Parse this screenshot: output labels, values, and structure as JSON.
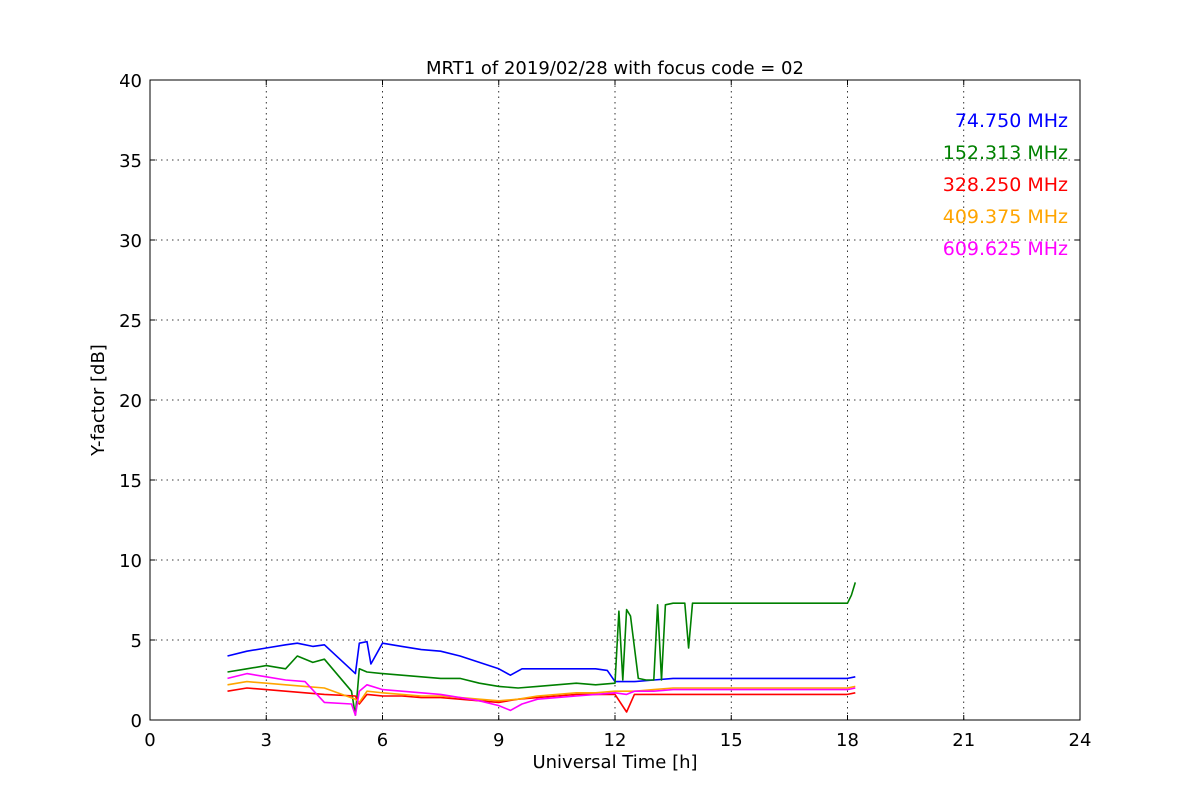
{
  "chart_data": {
    "type": "line",
    "title": "MRT1 of 2019/02/28 with focus code = 02",
    "xlabel": "Universal Time [h]",
    "ylabel": "Y-factor [dB]",
    "xlim": [
      0,
      24
    ],
    "ylim": [
      0,
      40
    ],
    "x_ticks": [
      0,
      3,
      6,
      9,
      12,
      15,
      18,
      21,
      24
    ],
    "x_tick_labels": [
      "0",
      "3",
      "6",
      "9",
      "12",
      "15",
      "18",
      "21",
      "24"
    ],
    "y_ticks": [
      0,
      5,
      10,
      15,
      20,
      25,
      30,
      35,
      40
    ],
    "y_tick_labels": [
      "0",
      "5",
      "10",
      "15",
      "20",
      "25",
      "30",
      "35",
      "40"
    ],
    "grid": true,
    "legend_position": "top-right",
    "series": [
      {
        "name": "74.750 MHz",
        "color": "#0000ff",
        "x": [
          2.0,
          2.5,
          3.0,
          3.5,
          3.8,
          4.2,
          4.5,
          5.3,
          5.4,
          5.6,
          5.7,
          6.0,
          6.5,
          7.0,
          7.5,
          8.0,
          8.5,
          9.0,
          9.3,
          9.6,
          10.0,
          10.5,
          11.0,
          11.5,
          11.8,
          12.0,
          12.5,
          13.0,
          13.5,
          14.0,
          18.0,
          18.2
        ],
        "y": [
          4.0,
          4.3,
          4.5,
          4.7,
          4.8,
          4.6,
          4.7,
          2.9,
          4.8,
          4.9,
          3.5,
          4.8,
          4.6,
          4.4,
          4.3,
          4.0,
          3.6,
          3.2,
          2.8,
          3.2,
          3.2,
          3.2,
          3.2,
          3.2,
          3.1,
          2.4,
          2.4,
          2.5,
          2.6,
          2.6,
          2.6,
          2.7
        ]
      },
      {
        "name": "152.313 MHz",
        "color": "#008000",
        "x": [
          2.0,
          2.5,
          3.0,
          3.5,
          3.8,
          4.2,
          4.5,
          5.2,
          5.3,
          5.4,
          5.6,
          6.0,
          6.5,
          7.0,
          7.5,
          8.0,
          8.5,
          9.0,
          9.5,
          10.0,
          10.5,
          11.0,
          11.5,
          12.0,
          12.1,
          12.2,
          12.3,
          12.4,
          12.6,
          12.8,
          13.0,
          13.1,
          13.2,
          13.3,
          13.5,
          13.8,
          13.9,
          14.0,
          18.0,
          18.1,
          18.2
        ],
        "y": [
          3.0,
          3.2,
          3.4,
          3.2,
          4.0,
          3.6,
          3.8,
          1.8,
          0.3,
          3.2,
          3.0,
          2.9,
          2.8,
          2.7,
          2.6,
          2.6,
          2.3,
          2.1,
          2.0,
          2.1,
          2.2,
          2.3,
          2.2,
          2.3,
          6.8,
          2.5,
          6.9,
          6.5,
          2.6,
          2.5,
          2.5,
          7.2,
          2.5,
          7.2,
          7.3,
          7.3,
          4.5,
          7.3,
          7.3,
          7.8,
          8.6
        ]
      },
      {
        "name": "328.250 MHz",
        "color": "#ff0000",
        "x": [
          2.0,
          2.5,
          3.0,
          3.5,
          4.0,
          4.5,
          5.3,
          5.4,
          5.6,
          6.0,
          6.5,
          7.0,
          7.5,
          8.0,
          8.5,
          9.0,
          9.5,
          10.0,
          10.5,
          11.0,
          11.5,
          12.0,
          12.3,
          12.5,
          13.0,
          13.5,
          14.0,
          18.0,
          18.2
        ],
        "y": [
          1.8,
          2.0,
          1.9,
          1.8,
          1.7,
          1.6,
          1.5,
          1.0,
          1.6,
          1.5,
          1.5,
          1.4,
          1.4,
          1.3,
          1.2,
          1.1,
          1.3,
          1.4,
          1.5,
          1.6,
          1.6,
          1.6,
          0.5,
          1.6,
          1.6,
          1.6,
          1.6,
          1.6,
          1.7
        ]
      },
      {
        "name": "409.375 MHz",
        "color": "#ffa500",
        "x": [
          2.0,
          2.5,
          3.0,
          3.5,
          4.0,
          4.5,
          5.3,
          5.4,
          5.6,
          6.0,
          6.5,
          7.0,
          7.5,
          8.0,
          8.5,
          9.0,
          9.5,
          10.0,
          10.5,
          11.0,
          11.5,
          12.0,
          12.5,
          13.0,
          13.5,
          14.0,
          18.0,
          18.2
        ],
        "y": [
          2.2,
          2.4,
          2.3,
          2.2,
          2.1,
          2.0,
          1.3,
          1.1,
          1.8,
          1.7,
          1.6,
          1.5,
          1.5,
          1.4,
          1.3,
          1.2,
          1.3,
          1.5,
          1.6,
          1.7,
          1.7,
          1.8,
          1.8,
          1.9,
          2.0,
          2.0,
          2.0,
          2.1
        ]
      },
      {
        "name": "609.625 MHz",
        "color": "#ff00ff",
        "x": [
          2.0,
          2.5,
          3.0,
          3.5,
          4.0,
          4.5,
          5.2,
          5.3,
          5.4,
          5.6,
          6.0,
          6.5,
          7.0,
          7.5,
          8.0,
          8.5,
          9.0,
          9.3,
          9.6,
          10.0,
          10.5,
          11.0,
          11.5,
          12.0,
          12.3,
          12.5,
          13.0,
          13.5,
          14.0,
          18.0,
          18.2
        ],
        "y": [
          2.6,
          2.9,
          2.7,
          2.5,
          2.4,
          1.1,
          1.0,
          0.3,
          1.8,
          2.2,
          1.9,
          1.8,
          1.7,
          1.6,
          1.4,
          1.2,
          0.9,
          0.6,
          1.0,
          1.3,
          1.4,
          1.5,
          1.6,
          1.7,
          1.6,
          1.8,
          1.8,
          1.9,
          1.9,
          1.9,
          2.0
        ]
      }
    ]
  }
}
